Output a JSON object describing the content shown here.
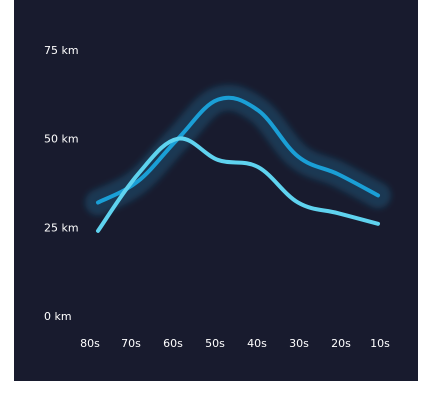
{
  "chart_data": {
    "type": "line",
    "title": "",
    "xlabel": "",
    "ylabel": "",
    "categories": [
      "80s",
      "70s",
      "60s",
      "50s",
      "40s",
      "30s",
      "20s",
      "10s"
    ],
    "yticks": [
      {
        "value": 0,
        "label": "0 km"
      },
      {
        "value": 25,
        "label": "25 km"
      },
      {
        "value": 50,
        "label": "50 km"
      },
      {
        "value": 75,
        "label": "75 km"
      }
    ],
    "ylim": [
      0,
      75
    ],
    "grid": false,
    "series": [
      {
        "values": [
          32,
          38,
          50,
          61,
          58,
          45,
          40,
          34
        ],
        "color": "#1a9fd6",
        "glow": true
      },
      {
        "values": [
          24,
          40,
          50,
          44,
          42,
          32,
          29,
          26
        ],
        "color": "#5fd3ef",
        "glow": false
      }
    ]
  }
}
